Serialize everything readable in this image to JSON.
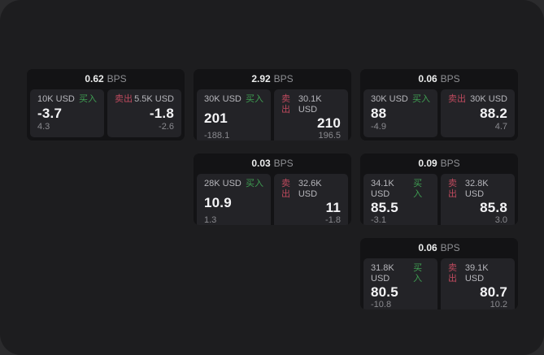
{
  "labels": {
    "bps_unit": "BPS",
    "buy": "买入",
    "sell": "卖出"
  },
  "colors": {
    "canvas_bg": "#1d1d1f",
    "card_bg": "#131315",
    "pane_bg": "#232327",
    "buy_green": "#3f9e52",
    "sell_red": "#bf4a5e"
  },
  "cards": [
    {
      "bps": "0.62",
      "buy": {
        "size": "10K USD",
        "value": "-3.7",
        "delta": "4.3"
      },
      "sell": {
        "size": "5.5K USD",
        "value": "-1.8",
        "delta": "-2.6"
      }
    },
    {
      "bps": "2.92",
      "buy": {
        "size": "30K USD",
        "value": "201",
        "delta": "-188.1"
      },
      "sell": {
        "size": "30.1K USD",
        "value": "210",
        "delta": "196.5"
      }
    },
    {
      "bps": "0.03",
      "buy": {
        "size": "28K USD",
        "value": "10.9",
        "delta": "1.3"
      },
      "sell": {
        "size": "32.6K USD",
        "value": "11",
        "delta": "-1.8"
      }
    },
    {
      "bps": "0.06",
      "buy": {
        "size": "30K USD",
        "value": "88",
        "delta": "-4.9"
      },
      "sell": {
        "size": "30K USD",
        "value": "88.2",
        "delta": "4.7"
      }
    },
    {
      "bps": "0.09",
      "buy": {
        "size": "34.1K USD",
        "value": "85.5",
        "delta": "-3.1"
      },
      "sell": {
        "size": "32.8K USD",
        "value": "85.8",
        "delta": "3.0"
      }
    },
    {
      "bps": "0.06",
      "buy": {
        "size": "31.8K USD",
        "value": "80.5",
        "delta": "-10.8"
      },
      "sell": {
        "size": "39.1K USD",
        "value": "80.7",
        "delta": "10.2"
      }
    }
  ]
}
